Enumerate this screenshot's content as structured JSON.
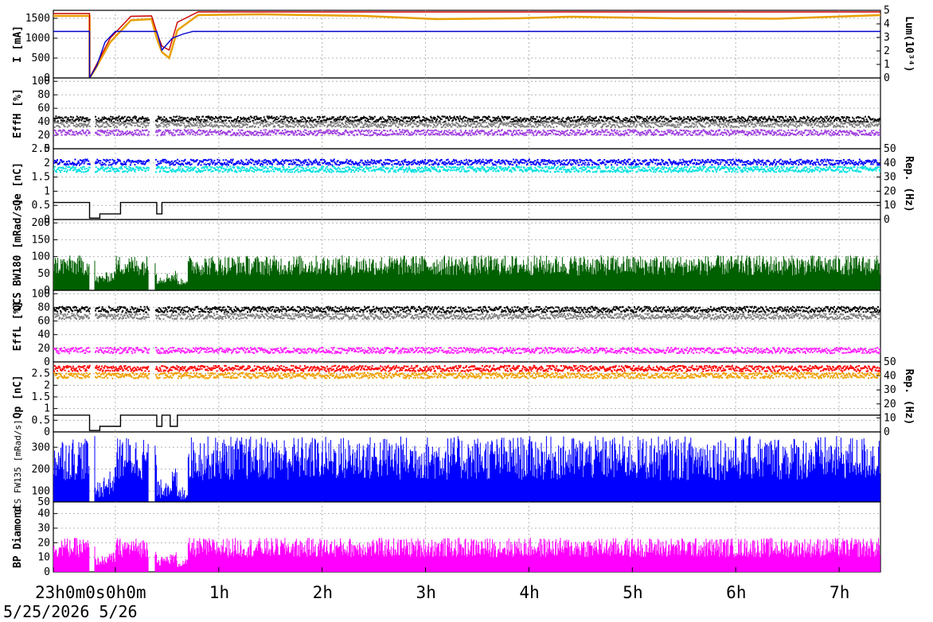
{
  "chart_data": [
    {
      "type": "line",
      "panel": "I",
      "ylabel": "I [mA]",
      "y2label": "Lum(10³⁴)",
      "ylim": [
        0,
        1700
      ],
      "y2lim": [
        0,
        5
      ],
      "yticks": [
        "0",
        "500",
        "1000",
        "1500"
      ],
      "y2ticks": [
        "0",
        "1",
        "2",
        "3",
        "4",
        "5"
      ],
      "series": [
        {
          "color": "#e8a000",
          "x": [
            0,
            0.35,
            0.35,
            0.4,
            0.55,
            0.75,
            0.95,
            1.0,
            1.05,
            1.12,
            1.2,
            1.4,
            2,
            3,
            3.7,
            4.5,
            5,
            6,
            7,
            8
          ],
          "values": [
            1560,
            1560,
            0,
            200,
            900,
            1450,
            1480,
            1000,
            650,
            500,
            1200,
            1580,
            1600,
            1560,
            1480,
            1500,
            1540,
            1500,
            1490,
            1580
          ]
        },
        {
          "color": "#cc0000",
          "x": [
            0,
            0.35,
            0.35,
            0.4,
            0.55,
            0.75,
            0.95,
            1.0,
            1.05,
            1.12,
            1.2,
            1.4,
            2,
            8
          ],
          "values": [
            1620,
            1620,
            0,
            250,
            1000,
            1550,
            1560,
            1150,
            800,
            700,
            1400,
            1660,
            1660,
            1660
          ]
        },
        {
          "color": "#0000cc",
          "x": [
            0,
            0.35,
            0.35,
            0.42,
            0.5,
            0.6,
            1.0,
            1.05,
            1.15,
            1.25,
            1.35,
            8
          ],
          "values": [
            1170,
            1170,
            0,
            300,
            900,
            1170,
            1170,
            700,
            1000,
            1100,
            1170,
            1170
          ]
        }
      ]
    },
    {
      "type": "scatter",
      "panel": "EffH",
      "ylabel": "EffH [%]",
      "ylim": [
        0,
        105
      ],
      "yticks": [
        "0",
        "20",
        "40",
        "60",
        "80",
        "100"
      ],
      "series": [
        {
          "color": "#000000",
          "level": 45
        },
        {
          "color": "#808080",
          "level": 37
        },
        {
          "color": "#a040e0",
          "level": 25
        }
      ]
    },
    {
      "type": "scatter",
      "panel": "Qe",
      "ylabel": "Qe [nC]",
      "y2label": "Rep. (Hz)",
      "ylim": [
        0,
        2.5
      ],
      "y2lim": [
        0,
        50
      ],
      "yticks": [
        "0",
        "0.5",
        "1",
        "1.5",
        "2",
        "2.5"
      ],
      "y2ticks": [
        "0",
        "10",
        "20",
        "30",
        "40",
        "50"
      ],
      "series": [
        {
          "color": "#0000ff",
          "level": 2.05
        },
        {
          "color": "#00e0e0",
          "level": 1.8
        },
        {
          "color": "#000000",
          "name": "Rep",
          "x": [
            0,
            0.35,
            0.35,
            0.45,
            0.45,
            0.65,
            0.65,
            1.0,
            1.0,
            1.05,
            1.05,
            8
          ],
          "values": [
            12,
            12,
            1,
            1,
            4,
            4,
            12,
            12,
            4,
            4,
            12,
            12
          ]
        }
      ]
    },
    {
      "type": "bar",
      "panel": "QCS BW180",
      "ylabel": "QCS BW180 [mRad/s]",
      "ylim": [
        0,
        210
      ],
      "yticks": [
        "0",
        "50",
        "100",
        "150",
        "200"
      ],
      "series": [
        {
          "color": "#006000",
          "level": 80
        }
      ]
    },
    {
      "type": "scatter",
      "panel": "EffL",
      "ylabel": "EffL [%]",
      "ylim": [
        0,
        105
      ],
      "yticks": [
        "0",
        "20",
        "40",
        "60",
        "80",
        "100"
      ],
      "series": [
        {
          "color": "#000000",
          "level": 78
        },
        {
          "color": "#808080",
          "level": 68
        },
        {
          "color": "#ff20ff",
          "level": 18
        }
      ]
    },
    {
      "type": "scatter",
      "panel": "Qp",
      "ylabel": "Qp [nC]",
      "y2label": "Rep. (Hz)",
      "ylim": [
        0,
        3
      ],
      "y2lim": [
        0,
        50
      ],
      "yticks": [
        "0",
        "0.5",
        "1",
        "1.5",
        "2",
        "2.5"
      ],
      "y2ticks": [
        "0",
        "10",
        "20",
        "30",
        "40",
        "50"
      ],
      "series": [
        {
          "color": "#ff0000",
          "level": 2.75
        },
        {
          "color": "#f0a000",
          "level": 2.45
        },
        {
          "color": "#000000",
          "name": "Rep",
          "x": [
            0,
            0.35,
            0.35,
            0.45,
            0.45,
            0.65,
            0.65,
            1.0,
            1.0,
            1.05,
            1.05,
            1.13,
            1.13,
            1.2,
            1.2,
            8
          ],
          "values": [
            12,
            12,
            1,
            1,
            4,
            4,
            12,
            12,
            4,
            4,
            12,
            12,
            4,
            4,
            12,
            12
          ]
        }
      ]
    },
    {
      "type": "bar",
      "panel": "QCS FW135",
      "ylabel": "QCS FW135 [mRad/s]",
      "ylim": [
        50,
        370
      ],
      "yticks": [
        "50",
        "100",
        "200",
        "300"
      ],
      "series": [
        {
          "color": "#0000ff",
          "level": 270
        }
      ]
    },
    {
      "type": "bar",
      "panel": "BP Diamond",
      "ylabel": "BP Diamond",
      "ylim": [
        0,
        48
      ],
      "yticks": [
        "0",
        "10",
        "20",
        "30",
        "40"
      ],
      "series": [
        {
          "color": "#ff00ff",
          "level": 18
        }
      ]
    }
  ],
  "x_axis": {
    "xlim_hours": [
      0,
      8
    ],
    "ticks": [
      {
        "t": 0,
        "label": "23h0m0s"
      },
      {
        "t": 0.6,
        "label": "0h0m"
      },
      {
        "t": 1.6,
        "label": "1h"
      },
      {
        "t": 2.6,
        "label": "2h"
      },
      {
        "t": 3.6,
        "label": "3h"
      },
      {
        "t": 4.6,
        "label": "4h"
      },
      {
        "t": 5.6,
        "label": "5h"
      },
      {
        "t": 6.6,
        "label": "6h"
      },
      {
        "t": 7.6,
        "label": "7h"
      }
    ],
    "date_label": "5/25/2026  5/26"
  }
}
